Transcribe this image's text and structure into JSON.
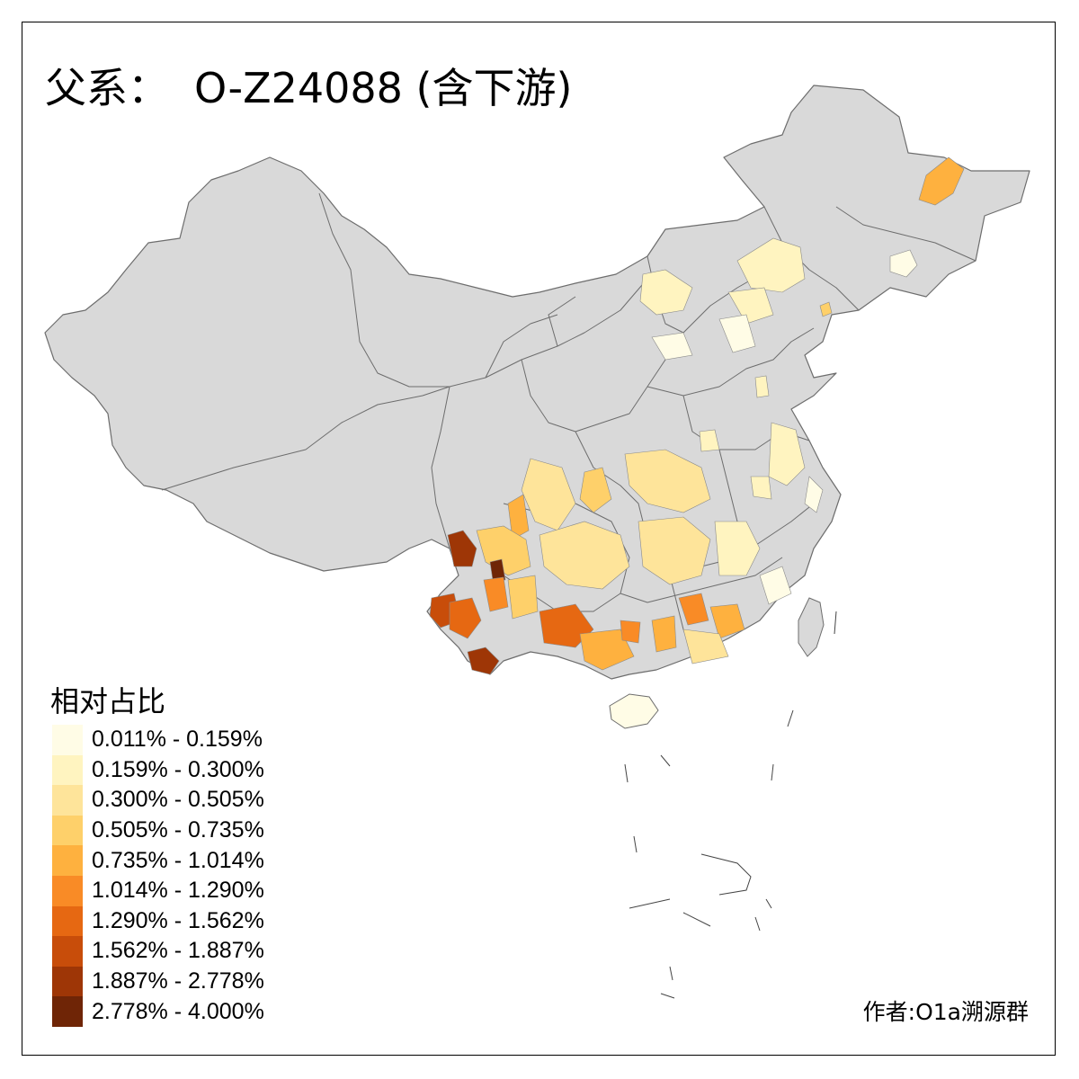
{
  "title": {
    "prefix": "父系：",
    "haplogroup": "O-Z24088 (含下游)"
  },
  "legend": {
    "title": "相对占比",
    "items": [
      {
        "label": "0.011% - 0.159%",
        "color": "#fffce6"
      },
      {
        "label": "0.159% - 0.300%",
        "color": "#fff4c0"
      },
      {
        "label": "0.300% - 0.505%",
        "color": "#fee49a"
      },
      {
        "label": "0.505% - 0.735%",
        "color": "#fed06a"
      },
      {
        "label": "0.735% - 1.014%",
        "color": "#feb13f"
      },
      {
        "label": "1.014% - 1.290%",
        "color": "#f98b26"
      },
      {
        "label": "1.290% - 1.562%",
        "color": "#e66812"
      },
      {
        "label": "1.562% - 1.887%",
        "color": "#c84d0a"
      },
      {
        "label": "1.887% - 2.778%",
        "color": "#9e3606"
      },
      {
        "label": "2.778% - 4.000%",
        "color": "#6f2506"
      }
    ]
  },
  "author": "作者:O1a溯源群",
  "colors": {
    "land": "#d9d9d9",
    "border": "#6d6d6d",
    "no_data": "#d9d9d9"
  }
}
